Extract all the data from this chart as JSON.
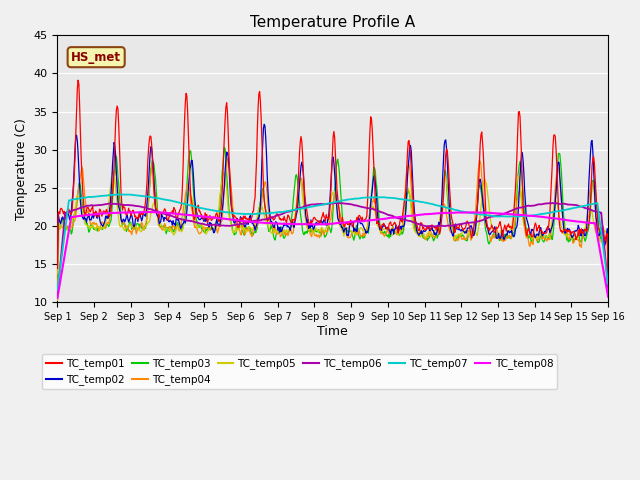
{
  "title": "Temperature Profile A",
  "xlabel": "Time",
  "ylabel": "Temperature (C)",
  "ylim": [
    10,
    45
  ],
  "yticks": [
    10,
    15,
    20,
    25,
    30,
    35,
    40,
    45
  ],
  "annotation": "HS_met",
  "series": [
    "TC_temp01",
    "TC_temp02",
    "TC_temp03",
    "TC_temp04",
    "TC_temp05",
    "TC_temp06",
    "TC_temp07",
    "TC_temp08"
  ],
  "series_colors": {
    "TC_temp01": "#ff0000",
    "TC_temp02": "#0000cc",
    "TC_temp03": "#00cc00",
    "TC_temp04": "#ff8800",
    "TC_temp05": "#cccc00",
    "TC_temp06": "#aa00aa",
    "TC_temp07": "#00cccc",
    "TC_temp08": "#ff00ff"
  },
  "x_tick_labels": [
    "Sep 1",
    "Sep 2",
    "Sep 3",
    "Sep 4",
    "Sep 5",
    "Sep 6",
    "Sep 7",
    "Sep 8",
    "Sep 9",
    "Sep 10",
    "Sep 11",
    "Sep 12",
    "Sep 13",
    "Sep 14",
    "Sep 15",
    "Sep 16"
  ],
  "n_days": 15,
  "fig_bg": "#f0f0f0",
  "ax_bg": "#e8e8e8"
}
